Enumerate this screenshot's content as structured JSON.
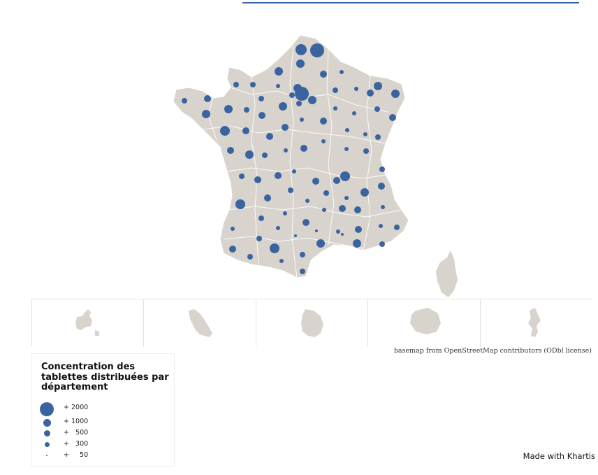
{
  "header": {
    "rule_color": "#3a64a0"
  },
  "map": {
    "land_color": "#d8d3cc",
    "border_color": "#ffffff",
    "symbol_color": "#3a64a0",
    "mainland_symbols": "proportional circles per département (blue)",
    "insets": [
      {
        "shape": "guadeloupe"
      },
      {
        "shape": "martinique"
      },
      {
        "shape": "guyane"
      },
      {
        "shape": "reunion"
      },
      {
        "shape": "mayotte"
      }
    ]
  },
  "attribution": "basemap from OpenStreetMap contributors (ODbl license)",
  "legend": {
    "title": "Concentration des tablettes distribuées par département",
    "items": [
      {
        "label": "+ 2000",
        "value": 2000
      },
      {
        "label": "+ 1000",
        "value": 1000
      },
      {
        "label": "+   500",
        "value": 500
      },
      {
        "label": "+   300",
        "value": 300
      },
      {
        "label": "+     50",
        "value": 50
      }
    ]
  },
  "credit": "Made with Khartis"
}
